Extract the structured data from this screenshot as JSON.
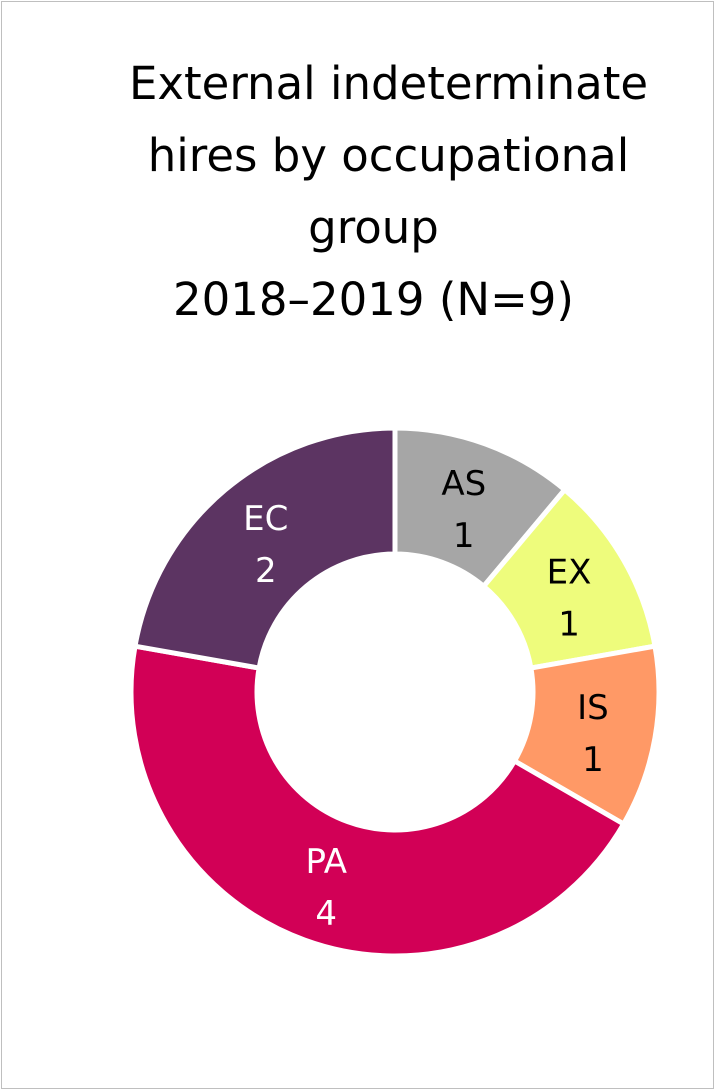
{
  "chart_data": {
    "type": "pie",
    "variant": "donut",
    "title_lines": [
      "External indeterminate",
      "hires by occupational",
      "group",
      "2018–2019 (N=9)"
    ],
    "categories": [
      "AS",
      "EX",
      "IS",
      "PA",
      "EC"
    ],
    "values": [
      1,
      1,
      1,
      4,
      2
    ],
    "labels": [
      "1",
      "1",
      "1",
      "4",
      "2"
    ],
    "colors": [
      "#a6a6a6",
      "#eefc7c",
      "#ff9966",
      "#d20056",
      "#5c3462"
    ],
    "label_colors": [
      "#000000",
      "#000000",
      "#000000",
      "#ffffff",
      "#ffffff"
    ],
    "legend": "none"
  }
}
